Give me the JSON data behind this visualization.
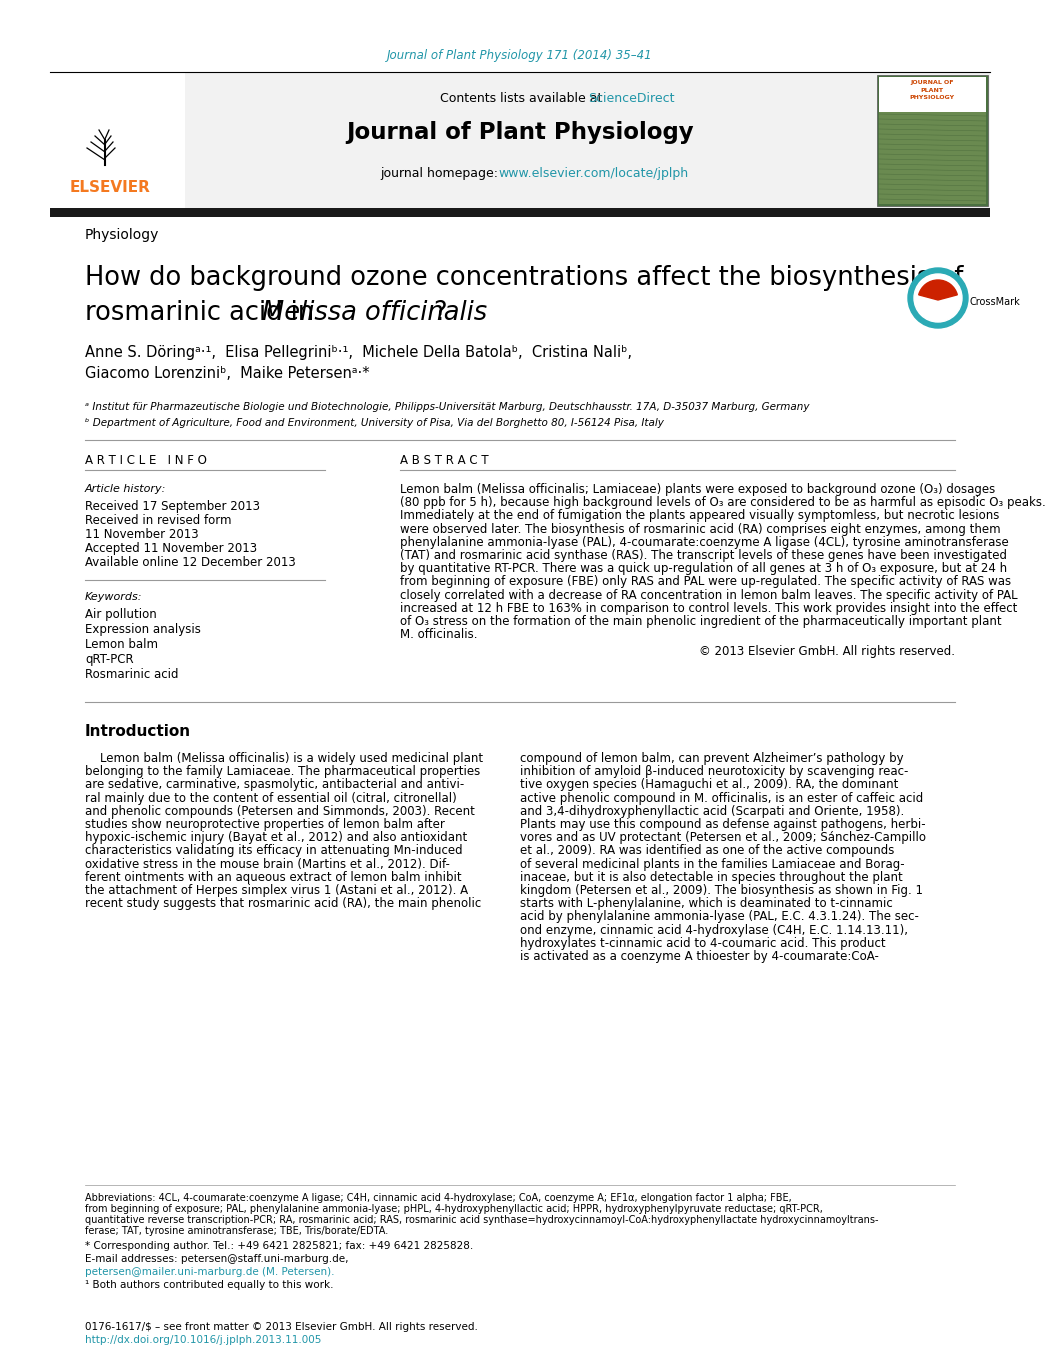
{
  "journal_ref": "Journal of Plant Physiology 171 (2014) 35–41",
  "contents_text": "Contents lists available at ",
  "sciencedirect": "ScienceDirect",
  "journal_homepage_text": "journal homepage: ",
  "journal_homepage_url": "www.elsevier.com/locate/jplph",
  "journal_title": "Journal of Plant Physiology",
  "section": "Physiology",
  "article_title_1": "How do background ozone concentrations affect the biosynthesis of",
  "article_title_2": "rosmarinic acid in ",
  "article_title_italic": "Melissa officinalis",
  "article_title_3": "?",
  "authors": "Anne S. Döringᵃ·¹,  Elisa Pellegriniᵇ·¹,  Michele Della Batolaᵇ,  Cristina Naliᵇ,",
  "authors2": "Giacomo Lorenziniᵇ,  Maike Petersenᵃ·*",
  "affil_a": "ᵃ Institut für Pharmazeutische Biologie und Biotechnologie, Philipps-Universität Marburg, Deutschhausstr. 17A, D-35037 Marburg, Germany",
  "affil_b": "ᵇ Department of Agriculture, Food and Environment, University of Pisa, Via del Borghetto 80, I-56124 Pisa, Italy",
  "article_info_header": "A R T I C L E   I N F O",
  "abstract_header": "A B S T R A C T",
  "article_history_label": "Article history:",
  "received": "Received 17 September 2013",
  "revised": "Received in revised form",
  "revised2": "11 November 2013",
  "accepted": "Accepted 11 November 2013",
  "available": "Available online 12 December 2013",
  "keywords_label": "Keywords:",
  "keywords": [
    "Air pollution",
    "Expression analysis",
    "Lemon balm",
    "qRT-PCR",
    "Rosmarinic acid"
  ],
  "abstract_lines": [
    "Lemon balm (Melissa officinalis; Lamiaceae) plants were exposed to background ozone (O₃) dosages",
    "(80 ppb for 5 h), because high background levels of O₃ are considered to be as harmful as episodic O₃ peaks.",
    "Immediately at the end of fumigation the plants appeared visually symptomless, but necrotic lesions",
    "were observed later. The biosynthesis of rosmarinic acid (RA) comprises eight enzymes, among them",
    "phenylalanine ammonia-lyase (PAL), 4-coumarate:coenzyme A ligase (4CL), tyrosine aminotransferase",
    "(TAT) and rosmarinic acid synthase (RAS). The transcript levels of these genes have been investigated",
    "by quantitative RT-PCR. There was a quick up-regulation of all genes at 3 h of O₃ exposure, but at 24 h",
    "from beginning of exposure (FBE) only RAS and PAL were up-regulated. The specific activity of RAS was",
    "closely correlated with a decrease of RA concentration in lemon balm leaves. The specific activity of PAL",
    "increased at 12 h FBE to 163% in comparison to control levels. This work provides insight into the effect",
    "of O₃ stress on the formation of the main phenolic ingredient of the pharmaceutically important plant",
    "M. officinalis."
  ],
  "copyright": "© 2013 Elsevier GmbH. All rights reserved.",
  "intro_header": "Introduction",
  "intro_left_lines": [
    "    Lemon balm (Melissa officinalis) is a widely used medicinal plant",
    "belonging to the family Lamiaceae. The pharmaceutical properties",
    "are sedative, carminative, spasmolytic, antibacterial and antivi-",
    "ral mainly due to the content of essential oil (citral, citronellal)",
    "and phenolic compounds (Petersen and Simmonds, 2003). Recent",
    "studies show neuroprotective properties of lemon balm after",
    "hypoxic-ischemic injury (Bayat et al., 2012) and also antioxidant",
    "characteristics validating its efficacy in attenuating Mn-induced",
    "oxidative stress in the mouse brain (Martins et al., 2012). Dif-",
    "ferent ointments with an aqueous extract of lemon balm inhibit",
    "the attachment of Herpes simplex virus 1 (Astani et al., 2012). A",
    "recent study suggests that rosmarinic acid (RA), the main phenolic"
  ],
  "intro_right_lines": [
    "compound of lemon balm, can prevent Alzheimer’s pathology by",
    "inhibition of amyloid β-induced neurotoxicity by scavenging reac-",
    "tive oxygen species (Hamaguchi et al., 2009). RA, the dominant",
    "active phenolic compound in M. officinalis, is an ester of caffeic acid",
    "and 3,4-dihydroxyphenyllactic acid (Scarpati and Oriente, 1958).",
    "Plants may use this compound as defense against pathogens, herbi-",
    "vores and as UV protectant (Petersen et al., 2009; Sánchez-Campillo",
    "et al., 2009). RA was identified as one of the active compounds",
    "of several medicinal plants in the families Lamiaceae and Borag-",
    "inaceae, but it is also detectable in species throughout the plant",
    "kingdom (Petersen et al., 2009). The biosynthesis as shown in Fig. 1",
    "starts with L-phenylalanine, which is deaminated to t-cinnamic",
    "acid by phenylalanine ammonia-lyase (PAL, E.C. 4.3.1.24). The sec-",
    "ond enzyme, cinnamic acid 4-hydroxylase (C4H, E.C. 1.14.13.11),",
    "hydroxylates t-cinnamic acid to 4-coumaric acid. This product",
    "is activated as a coenzyme A thioester by 4-coumarate:CoA-"
  ],
  "footnote_abbrev_lines": [
    "Abbreviations: 4CL, 4-coumarate:coenzyme A ligase; C4H, cinnamic acid 4-hydroxylase; CoA, coenzyme A; EF1α, elongation factor 1 alpha; FBE,",
    "from beginning of exposure; PAL, phenylalanine ammonia-lyase; pHPL, 4-hydroxyphenyllactic acid; HPPR, hydroxyphenylpyruvate reductase; qRT-PCR,",
    "quantitative reverse transcription-PCR; RA, rosmarinic acid; RAS, rosmarinic acid synthase=hydroxycinnamoyl-CoA:hydroxyphenyllactate hydroxycinnamoyltrans-",
    "ferase; TAT, tyrosine aminotransferase; TBE, Tris/borate/EDTA."
  ],
  "footnote_corresp": "* Corresponding author. Tel.: +49 6421 2825821; fax: +49 6421 2825828.",
  "footnote_email_label": "E-mail addresses: petersen@staff.uni-marburg.de,",
  "footnote_email2": "petersen@mailer.uni-marburg.de (M. Petersen).",
  "footnote_equal": "¹ Both authors contributed equally to this work.",
  "doi": "http://dx.doi.org/10.1016/j.jplph.2013.11.005",
  "issn": "0176-1617/$ – see front matter © 2013 Elsevier GmbH. All rights reserved.",
  "bg_color": "#ffffff",
  "elsevier_orange": "#f47920",
  "link_color": "#2196a8",
  "gray_line": "#999999"
}
